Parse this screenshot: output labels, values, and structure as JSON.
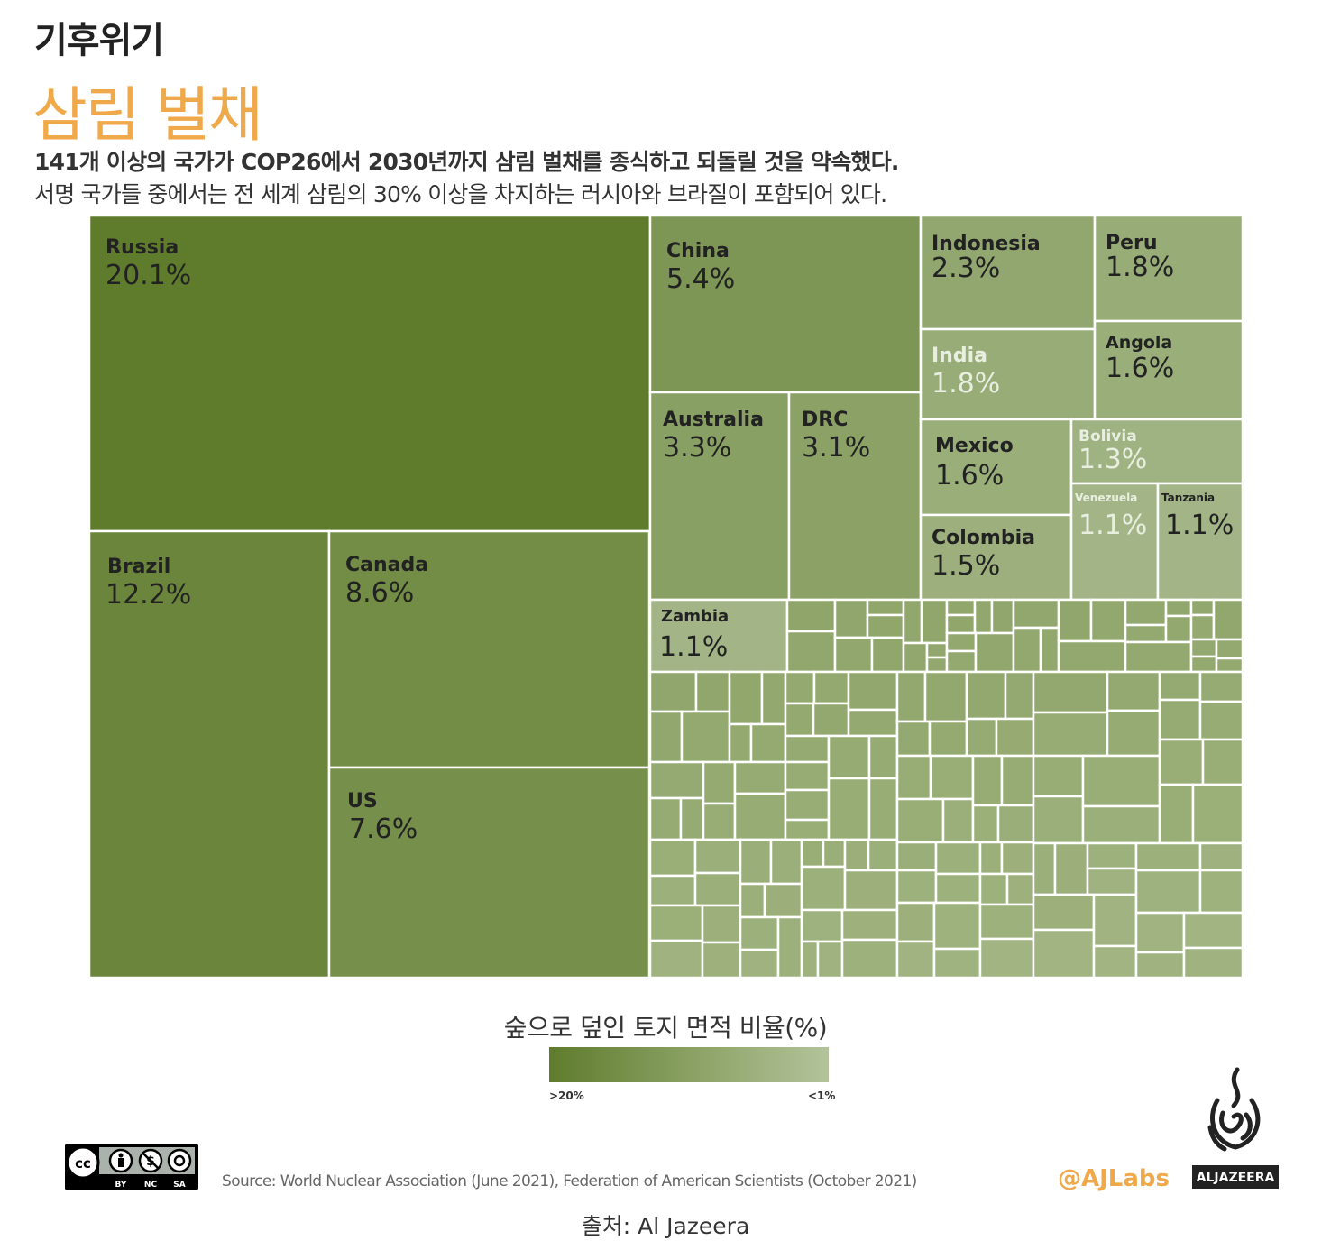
{
  "header": {
    "kicker": "기후위기",
    "headline": "삼림 벌채",
    "subtitle_line1": "141개 이상의 국가가 COP26에서 2030년까지 삼림 벌채를 종식하고 되돌릴 것을 약속했다.",
    "subtitle_line2": "서명 국가들 중에서는 전 세계 삼림의 30% 이상을 차지하는 러시아와 브라질이 포함되어 있다."
  },
  "chart_data": {
    "type": "treemap",
    "title": "삼림 벌채",
    "value_label": "숲으로 덮인 토지 면적 비율(%)",
    "items": [
      {
        "name": "Russia",
        "label": "20.1%",
        "value": 20.1
      },
      {
        "name": "Brazil",
        "label": "12.2%",
        "value": 12.2
      },
      {
        "name": "Canada",
        "label": "8.6%",
        "value": 8.6
      },
      {
        "name": "US",
        "label": "7.6%",
        "value": 7.6
      },
      {
        "name": "China",
        "label": "5.4%",
        "value": 5.4
      },
      {
        "name": "Australia",
        "label": "3.3%",
        "value": 3.3
      },
      {
        "name": "DRC",
        "label": "3.1%",
        "value": 3.1
      },
      {
        "name": "Indonesia",
        "label": "2.3%",
        "value": 2.3
      },
      {
        "name": "Peru",
        "label": "1.8%",
        "value": 1.8
      },
      {
        "name": "India",
        "label": "1.8%",
        "value": 1.8
      },
      {
        "name": "Angola",
        "label": "1.6%",
        "value": 1.6
      },
      {
        "name": "Mexico",
        "label": "1.6%",
        "value": 1.6
      },
      {
        "name": "Colombia",
        "label": "1.5%",
        "value": 1.5
      },
      {
        "name": "Bolivia",
        "label": "1.3%",
        "value": 1.3
      },
      {
        "name": "Venezuela",
        "label": "1.1%",
        "value": 1.1
      },
      {
        "name": "Tanzania",
        "label": "1.1%",
        "value": 1.1
      },
      {
        "name": "Zambia",
        "label": "1.1%",
        "value": 1.1
      }
    ],
    "unlabeled_small_countries": "below 1%",
    "color_scale": {
      "from": "#5f7c2d",
      "to": "#b3c39b",
      "min_label": ">20%",
      "max_label": "<1%"
    }
  },
  "legend": {
    "title": "숲으로 덮인 토지 면적 비율(%)",
    "min_label": ">20%",
    "max_label": "<1%"
  },
  "footer": {
    "source": "Source: World Nuclear Association (June 2021), Federation of American Scientists (October 2021)",
    "handle": "@AJLabs",
    "brand": "ALJAZEERA",
    "license_labels": [
      "BY",
      "NC",
      "SA"
    ],
    "credit": "출처: Al Jazeera"
  }
}
